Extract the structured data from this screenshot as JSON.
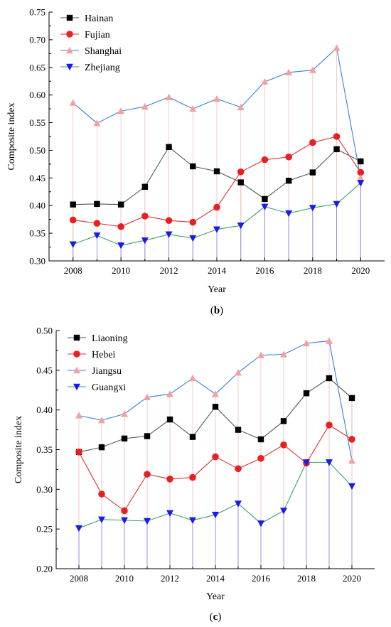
{
  "chart_data": [
    {
      "type": "line",
      "panel": "b",
      "caption_label": "b",
      "xlabel": "Year",
      "ylabel": "Composite index",
      "xlim": [
        2007,
        2021
      ],
      "ylim": [
        0.3,
        0.75
      ],
      "x_ticks": [
        2008,
        2010,
        2012,
        2014,
        2016,
        2018,
        2020
      ],
      "y_ticks": [
        0.3,
        0.35,
        0.4,
        0.45,
        0.5,
        0.55,
        0.6,
        0.65,
        0.7,
        0.75
      ],
      "y_tick_labels": [
        "0.30",
        "0.35",
        "0.40",
        "0.45",
        "0.50",
        "0.55",
        "0.60",
        "0.65",
        "0.70",
        "0.75"
      ],
      "grid": false,
      "legend_position": "top-left",
      "x": [
        2008,
        2009,
        2010,
        2011,
        2012,
        2013,
        2014,
        2015,
        2016,
        2017,
        2018,
        2019,
        2020
      ],
      "series": [
        {
          "name": "Hainan",
          "marker": "square",
          "line_color": "#555555",
          "marker_color": "#000000",
          "drop_color": "#bbbbbb",
          "values": [
            0.402,
            0.403,
            0.402,
            0.434,
            0.506,
            0.471,
            0.462,
            0.442,
            0.412,
            0.445,
            0.46,
            0.502,
            0.48
          ]
        },
        {
          "name": "Fujian",
          "marker": "circle",
          "line_color": "#e03030",
          "marker_color": "#e82020",
          "drop_color": "#f2b0b0",
          "values": [
            0.374,
            0.368,
            0.362,
            0.381,
            0.373,
            0.37,
            0.397,
            0.461,
            0.483,
            0.488,
            0.514,
            0.525,
            0.46
          ]
        },
        {
          "name": "Shanghai",
          "marker": "triangle-up",
          "line_color": "#3a7fdc",
          "marker_color": "#f5a0a0",
          "drop_color": "#f6c8c8",
          "values": [
            0.586,
            0.549,
            0.571,
            0.579,
            0.596,
            0.575,
            0.593,
            0.578,
            0.624,
            0.641,
            0.645,
            0.685,
            0.45
          ]
        },
        {
          "name": "Zhejiang",
          "marker": "triangle-down",
          "line_color": "#3aa060",
          "marker_color": "#1a1aee",
          "drop_color": "#8c8cf0",
          "values": [
            0.33,
            0.346,
            0.328,
            0.337,
            0.348,
            0.341,
            0.357,
            0.364,
            0.398,
            0.386,
            0.396,
            0.403,
            0.441
          ]
        }
      ]
    },
    {
      "type": "line",
      "panel": "c",
      "caption_label": "c",
      "xlabel": "Year",
      "ylabel": "Composite index",
      "xlim": [
        2007,
        2021
      ],
      "ylim": [
        0.2,
        0.5
      ],
      "x_ticks": [
        2008,
        2010,
        2012,
        2014,
        2016,
        2018,
        2020
      ],
      "y_ticks": [
        0.2,
        0.25,
        0.3,
        0.35,
        0.4,
        0.45,
        0.5
      ],
      "y_tick_labels": [
        "0.20",
        "0.25",
        "0.30",
        "0.35",
        "0.40",
        "0.45",
        "0.50"
      ],
      "grid": false,
      "legend_position": "top-left",
      "x": [
        2008,
        2009,
        2010,
        2011,
        2012,
        2013,
        2014,
        2015,
        2016,
        2017,
        2018,
        2019,
        2020
      ],
      "series": [
        {
          "name": "Liaoning",
          "marker": "square",
          "line_color": "#555555",
          "marker_color": "#000000",
          "drop_color": "#bbbbbb",
          "values": [
            0.347,
            0.353,
            0.364,
            0.367,
            0.388,
            0.366,
            0.404,
            0.375,
            0.363,
            0.386,
            0.421,
            0.44,
            0.415
          ]
        },
        {
          "name": "Hebei",
          "marker": "circle",
          "line_color": "#e03030",
          "marker_color": "#e82020",
          "drop_color": "#f2b0b0",
          "values": [
            0.347,
            0.294,
            0.273,
            0.319,
            0.313,
            0.315,
            0.341,
            0.326,
            0.339,
            0.356,
            0.333,
            0.381,
            0.363
          ]
        },
        {
          "name": "Jiangsu",
          "marker": "triangle-up",
          "line_color": "#3a7fdc",
          "marker_color": "#f5a0a0",
          "drop_color": "#f6c8c8",
          "values": [
            0.393,
            0.387,
            0.395,
            0.416,
            0.42,
            0.44,
            0.42,
            0.447,
            0.469,
            0.47,
            0.484,
            0.487,
            0.336
          ]
        },
        {
          "name": "Guangxi",
          "marker": "triangle-down",
          "line_color": "#3aa060",
          "marker_color": "#1a1aee",
          "drop_color": "#8c8cf0",
          "values": [
            0.251,
            0.262,
            0.261,
            0.26,
            0.27,
            0.261,
            0.268,
            0.282,
            0.257,
            0.273,
            0.334,
            0.334,
            0.304
          ]
        }
      ]
    }
  ]
}
